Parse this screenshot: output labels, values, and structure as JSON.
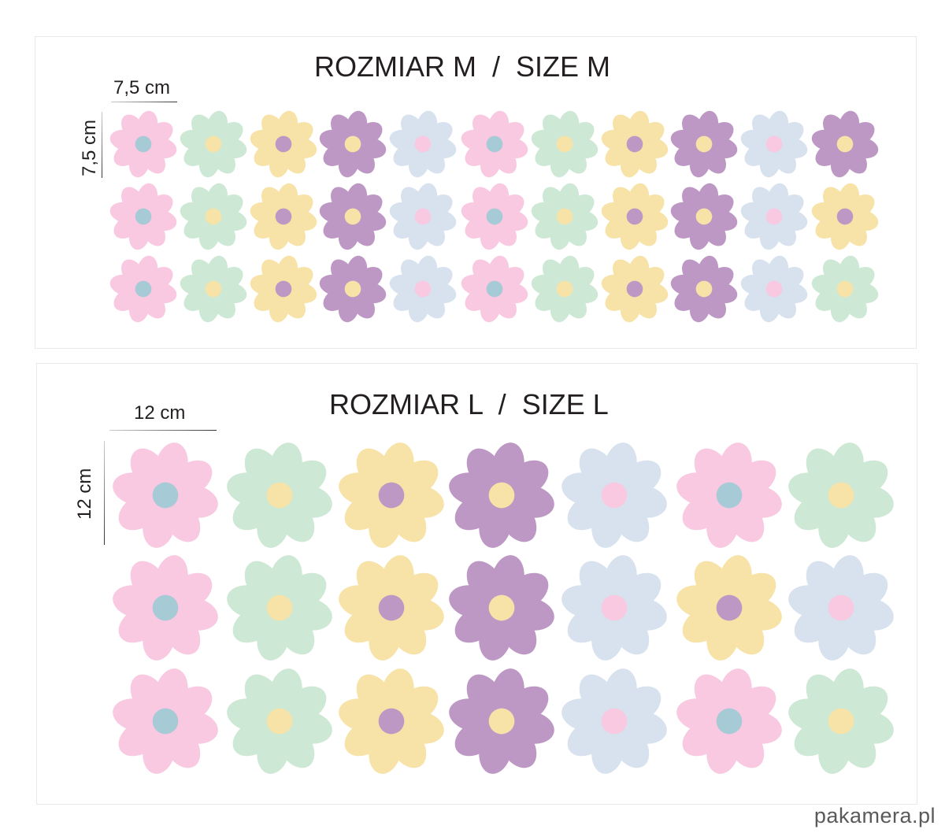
{
  "colors": {
    "pink": {
      "petal": "#f9c8e1",
      "center": "#a6cad6"
    },
    "green": {
      "petal": "#cde8d5",
      "center": "#f7e3a7"
    },
    "yellow": {
      "petal": "#f7e3a7",
      "center": "#be98c4"
    },
    "purple": {
      "petal": "#be98c4",
      "center": "#f7e3a7"
    },
    "blue": {
      "petal": "#d7e2ee",
      "center": "#f9c8e1"
    }
  },
  "size_m": {
    "title": "ROZMIAR M  /  SIZE M",
    "width_label": "7,5 cm",
    "height_label": "7,5 cm",
    "rows": [
      [
        "pink",
        "green",
        "yellow",
        "purple",
        "blue",
        "pink",
        "green",
        "yellow",
        "purple",
        "blue",
        "purple"
      ],
      [
        "pink",
        "green",
        "yellow",
        "purple",
        "blue",
        "pink",
        "green",
        "yellow",
        "purple",
        "blue",
        "yellow"
      ],
      [
        "pink",
        "green",
        "yellow",
        "purple",
        "blue",
        "pink",
        "green",
        "yellow",
        "purple",
        "blue",
        "green"
      ]
    ]
  },
  "size_l": {
    "title": "ROZMIAR L  /  SIZE L",
    "width_label": "12 cm",
    "height_label": "12 cm",
    "rows": [
      [
        "pink",
        "green",
        "yellow",
        "purple",
        "blue",
        "pink",
        "green"
      ],
      [
        "pink",
        "green",
        "yellow",
        "purple",
        "blue",
        "yellow",
        "blue"
      ],
      [
        "pink",
        "green",
        "yellow",
        "purple",
        "blue",
        "pink",
        "green"
      ]
    ]
  },
  "watermark": "pakamera.pl"
}
